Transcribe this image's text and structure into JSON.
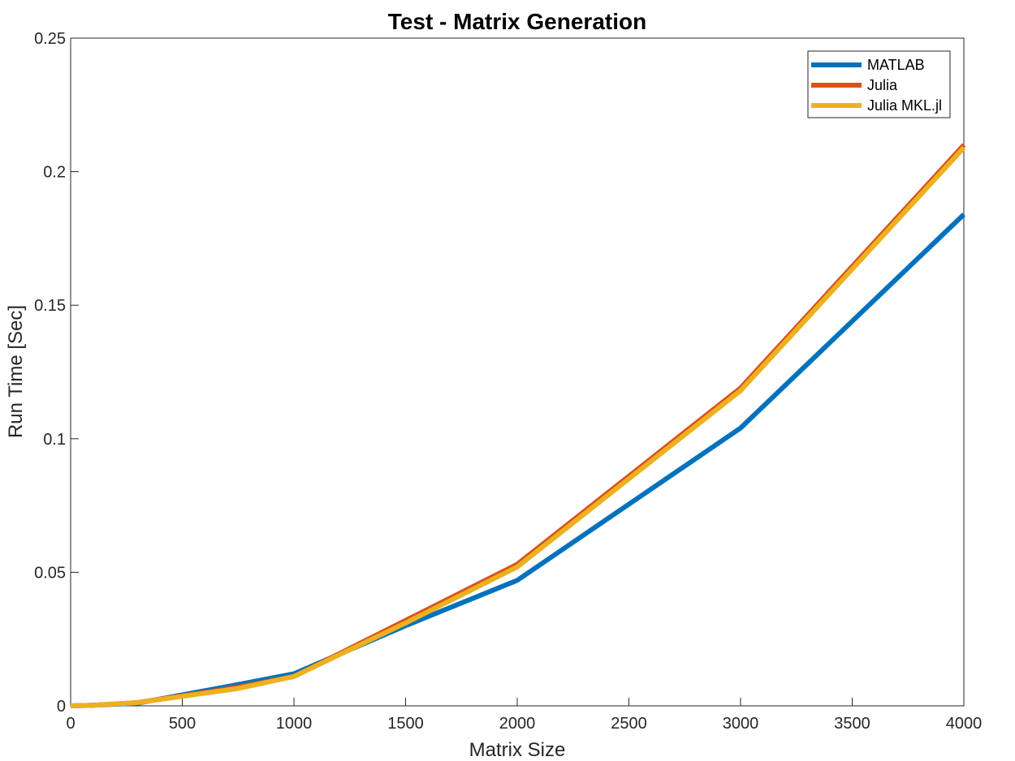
{
  "chart_data": {
    "type": "line",
    "title": "Test - Matrix Generation",
    "xlabel": "Matrix Size",
    "ylabel": "Run Time  [Sec]",
    "xlim": [
      0,
      4000
    ],
    "ylim": [
      0,
      0.25
    ],
    "xticks": [
      "0",
      "500",
      "1000",
      "1500",
      "2000",
      "2500",
      "3000",
      "3500",
      "4000"
    ],
    "yticks": [
      "0",
      "0.05",
      "0.1",
      "0.15",
      "0.2",
      "0.25"
    ],
    "xtick_values": [
      0,
      500,
      1000,
      1500,
      2000,
      2500,
      3000,
      3500,
      4000
    ],
    "ytick_values": [
      0,
      0.05,
      0.1,
      0.15,
      0.2,
      0.25
    ],
    "grid": false,
    "legend_position": "top-right",
    "x": [
      0,
      100,
      300,
      750,
      1000,
      1500,
      2000,
      3000,
      4000
    ],
    "series": [
      {
        "name": "MATLAB",
        "color": "#0072BD",
        "values": [
          0.0,
          0.0002,
          0.001,
          0.008,
          0.012,
          0.03,
          0.047,
          0.104,
          0.184
        ]
      },
      {
        "name": "Julia",
        "color": "#D95319",
        "values": [
          0.0,
          0.0002,
          0.0012,
          0.007,
          0.011,
          0.032,
          0.053,
          0.119,
          0.21
        ]
      },
      {
        "name": "Julia MKL.jl",
        "color": "#EDB120",
        "values": [
          0.0,
          0.0002,
          0.0012,
          0.0065,
          0.011,
          0.031,
          0.052,
          0.118,
          0.209
        ]
      }
    ]
  }
}
